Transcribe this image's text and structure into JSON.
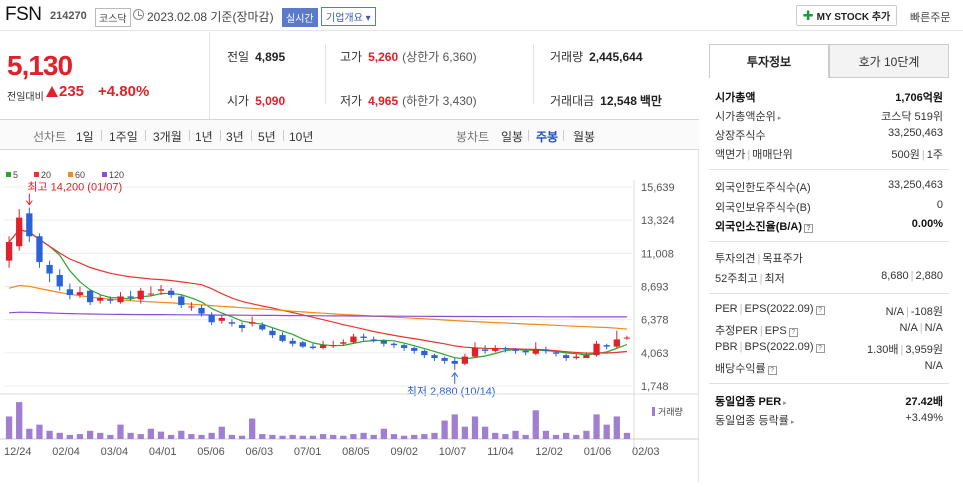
{
  "header": {
    "name": "FSN",
    "code": "214270",
    "market": "코스닥",
    "date": "2023.02.08 기준(장마감)",
    "realtime": "실시간",
    "overview": "기업개요 ▾",
    "mystock": "MY STOCK 추가",
    "quick": "빠른주문"
  },
  "price": {
    "current": "5,130",
    "change_label": "전일대비",
    "change": "235",
    "change_pct": "+4.80%"
  },
  "stats": {
    "prev_label": "전일",
    "prev": "4,895",
    "high_label": "고가",
    "high": "5,260",
    "upper_limit": "(상한가 6,360)",
    "volume_label": "거래량",
    "volume": "2,445,644",
    "open_label": "시가",
    "open": "5,090",
    "low_label": "저가",
    "low": "4,965",
    "lower_limit": "(하한가 3,430)",
    "amount_label": "거래대금",
    "amount": "12,548",
    "amount_unit": "백만"
  },
  "chart_tabs": {
    "line_label": "선차트",
    "line_items": [
      "1일",
      "1주일",
      "3개월",
      "1년",
      "3년",
      "5년",
      "10년"
    ],
    "candle_label": "봉차트",
    "candle_items": [
      "일봉",
      "주봉",
      "월봉"
    ],
    "active_candle": "주봉"
  },
  "sidebar": {
    "tab_invest": "투자정보",
    "tab_hoga": "호가 10단계",
    "rows": {
      "mcap_k": "시가총액",
      "mcap_v": "1,706억원",
      "mrank_k": "시가총액순위",
      "mrank_v": "코스닥 519위",
      "shares_k": "상장주식수",
      "shares_v": "33,250,463",
      "par_k": "액면가",
      "unit_k": "매매단위",
      "par_v": "500원",
      "unit_v": "1주",
      "forlimit_k": "외국인한도주식수(A)",
      "forlimit_v": "33,250,463",
      "forhold_k": "외국인보유주식수(B)",
      "forhold_v": "0",
      "forrate_k": "외국인소진율(B/A)",
      "forrate_v": "0.00%",
      "opinion_k": "투자의견",
      "target_k": "목표주가",
      "w52_k1": "52주최고",
      "w52_k2": "최저",
      "w52_high": "8,680",
      "w52_low": "2,880",
      "per_k": "PER",
      "eps_k": "EPS(2022.09)",
      "per_v": "N/A",
      "eps_v": "-108원",
      "eper_k": "추정PER",
      "eeps_k": "EPS",
      "eper_v": "N/A",
      "eeps_v": "N/A",
      "pbr_k": "PBR",
      "bps_k": "BPS(2022.09)",
      "pbr_v": "1.30배",
      "bps_v": "3,959원",
      "div_k": "배당수익률",
      "div_v": "N/A",
      "iper_k": "동일업종 PER",
      "iper_v": "27.42배",
      "irate_k": "동일업종 등락률",
      "irate_v": "+3.49%"
    }
  },
  "chart_data": {
    "type": "candlestick",
    "legend": [
      {
        "name": "5",
        "color": "#2aa52a"
      },
      {
        "name": "20",
        "color": "#e8352e"
      },
      {
        "name": "60",
        "color": "#f08a1c"
      },
      {
        "name": "120",
        "color": "#8c4ad6"
      }
    ],
    "volume_legend": "거래량",
    "y_ticks": [
      "15,639",
      "13,324",
      "11,008",
      "8,693",
      "6,378",
      "4,063",
      "1,748"
    ],
    "ylim": [
      1748,
      15639
    ],
    "x_labels": [
      "12/24",
      "02/04",
      "03/04",
      "04/01",
      "05/06",
      "06/03",
      "07/01",
      "08/05",
      "09/02",
      "10/07",
      "11/04",
      "12/02",
      "01/06",
      "02/03"
    ],
    "annotations": [
      {
        "text": "최고 14,200 (01/07)",
        "kind": "max",
        "value": 14200,
        "index": 2
      },
      {
        "text": "최저 2,880 (10/14)",
        "kind": "min",
        "value": 2880,
        "index": 44
      }
    ],
    "candles": [
      [
        10500,
        11800,
        12200,
        10000
      ],
      [
        11500,
        13500,
        14100,
        11200
      ],
      [
        13800,
        12200,
        14200,
        11800
      ],
      [
        12200,
        10400,
        12400,
        10000
      ],
      [
        10200,
        9600,
        10500,
        9000
      ],
      [
        9500,
        8700,
        9900,
        8400
      ],
      [
        8500,
        8100,
        8900,
        7800
      ],
      [
        8100,
        8300,
        8700,
        7900
      ],
      [
        8400,
        7600,
        8500,
        7400
      ],
      [
        7700,
        7900,
        8100,
        7500
      ],
      [
        7800,
        7700,
        8000,
        7500
      ],
      [
        7600,
        8000,
        8300,
        7500
      ],
      [
        8000,
        7900,
        8400,
        7700
      ],
      [
        7800,
        8400,
        8600,
        7500
      ],
      [
        8200,
        8200,
        8700,
        8000
      ],
      [
        8400,
        8500,
        8800,
        8100
      ],
      [
        8400,
        8100,
        8600,
        7900
      ],
      [
        8000,
        7400,
        8100,
        7200
      ],
      [
        7300,
        7300,
        7600,
        7000
      ],
      [
        7200,
        6800,
        7400,
        6600
      ],
      [
        6700,
        6200,
        6900,
        6000
      ],
      [
        6300,
        6500,
        6700,
        6100
      ],
      [
        6200,
        6100,
        6400,
        5900
      ],
      [
        6000,
        5800,
        6200,
        5500
      ],
      [
        6100,
        6200,
        6600,
        5900
      ],
      [
        6000,
        5700,
        6200,
        5600
      ],
      [
        5600,
        5300,
        5800,
        5100
      ],
      [
        5300,
        4900,
        5500,
        4800
      ],
      [
        4900,
        4700,
        5100,
        4500
      ],
      [
        4800,
        4500,
        4900,
        4400
      ],
      [
        4500,
        4400,
        4700,
        4300
      ],
      [
        4400,
        4600,
        4900,
        4300
      ],
      [
        4600,
        4600,
        4900,
        4400
      ],
      [
        4700,
        4800,
        5000,
        4600
      ],
      [
        4800,
        5200,
        5400,
        4700
      ],
      [
        5200,
        5100,
        5400,
        4900
      ],
      [
        5000,
        4900,
        5200,
        4800
      ],
      [
        4900,
        4700,
        5000,
        4500
      ],
      [
        4700,
        4600,
        4800,
        4400
      ],
      [
        4600,
        4400,
        4700,
        4200
      ],
      [
        4400,
        4200,
        4500,
        4000
      ],
      [
        4200,
        3900,
        4300,
        3700
      ],
      [
        3900,
        3700,
        4000,
        3500
      ],
      [
        3700,
        3500,
        3800,
        3300
      ],
      [
        3500,
        3300,
        3700,
        2880
      ],
      [
        3300,
        3800,
        4000,
        3200
      ],
      [
        3800,
        4400,
        4800,
        3700
      ],
      [
        4300,
        4200,
        4600,
        4000
      ],
      [
        4200,
        4400,
        4600,
        4100
      ],
      [
        4400,
        4300,
        4500,
        4100
      ],
      [
        4300,
        4200,
        4400,
        4000
      ],
      [
        4200,
        4100,
        4300,
        3900
      ],
      [
        4000,
        4300,
        4800,
        3900
      ],
      [
        4300,
        4200,
        4500,
        4000
      ],
      [
        4100,
        4000,
        4200,
        3800
      ],
      [
        3900,
        3700,
        4000,
        3500
      ],
      [
        3700,
        3800,
        4000,
        3600
      ],
      [
        3700,
        3900,
        4100,
        3700
      ],
      [
        3900,
        4700,
        4900,
        3800
      ],
      [
        4600,
        4500,
        4700,
        4300
      ],
      [
        4500,
        5000,
        5600,
        4400
      ],
      [
        5090,
        5130,
        5260,
        4965
      ]
    ],
    "volumes": [
      0.55,
      0.9,
      0.25,
      0.35,
      0.2,
      0.15,
      0.1,
      0.12,
      0.2,
      0.15,
      0.1,
      0.35,
      0.15,
      0.12,
      0.25,
      0.18,
      0.1,
      0.2,
      0.12,
      0.1,
      0.15,
      0.3,
      0.1,
      0.08,
      0.5,
      0.12,
      0.1,
      0.08,
      0.1,
      0.08,
      0.08,
      0.12,
      0.1,
      0.08,
      0.12,
      0.15,
      0.1,
      0.25,
      0.12,
      0.08,
      0.1,
      0.12,
      0.15,
      0.45,
      0.6,
      0.3,
      0.55,
      0.3,
      0.15,
      0.12,
      0.2,
      0.1,
      0.7,
      0.2,
      0.1,
      0.15,
      0.1,
      0.2,
      0.6,
      0.35,
      0.55,
      0.15
    ]
  }
}
